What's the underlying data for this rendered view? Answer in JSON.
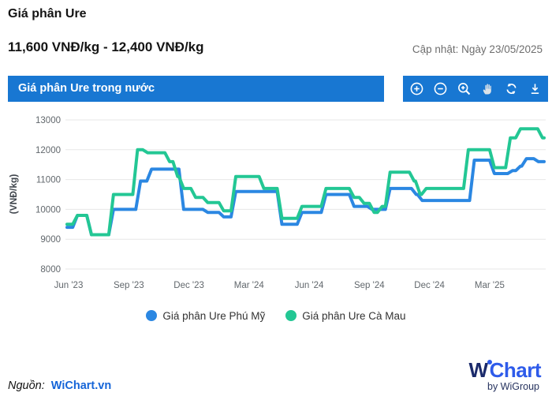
{
  "header": {
    "title": "Giá phân Ure",
    "price_range": "11,600 VNĐ/kg - 12,400 VNĐ/kg",
    "updated": "Cập nhật: Ngày 23/05/2025"
  },
  "banner": {
    "label": "Giá phân Ure trong nước",
    "color": "#1877d2",
    "tools": [
      "zoom-in",
      "zoom-out",
      "zoom-selection",
      "pan",
      "reset",
      "download"
    ]
  },
  "chart_data": {
    "type": "line",
    "step": true,
    "title": "Giá phân Ure trong nước",
    "xlabel": "",
    "ylabel": "(VNĐ/kg)",
    "ylim": [
      8000,
      13000
    ],
    "yticks": [
      8000,
      9000,
      10000,
      11000,
      12000,
      13000
    ],
    "xticks": [
      "Jun '23",
      "Sep '23",
      "Dec '23",
      "Mar '24",
      "Jun '24",
      "Sep '24",
      "Dec '24",
      "Mar '25"
    ],
    "xtick_positions": [
      0.08,
      3.08,
      6.08,
      9.08,
      12.08,
      15.08,
      18.08,
      21.08
    ],
    "x_unit": "months since Jun 2023",
    "x_total_months": 23.8,
    "grid": "horizontal",
    "legend_position": "bottom",
    "series": [
      {
        "name": "Giá phân Ure Phú Mỹ",
        "color": "#2b87e2",
        "points": [
          [
            0,
            9400
          ],
          [
            0.4,
            9800
          ],
          [
            1.1,
            9150
          ],
          [
            2.2,
            10000
          ],
          [
            3.55,
            10950
          ],
          [
            4.1,
            11350
          ],
          [
            5.7,
            10000
          ],
          [
            6.9,
            9900
          ],
          [
            7.7,
            9750
          ],
          [
            8.3,
            10600
          ],
          [
            10.6,
            9500
          ],
          [
            11.6,
            9900
          ],
          [
            12.8,
            10500
          ],
          [
            14.2,
            10100
          ],
          [
            15.1,
            10000
          ],
          [
            16,
            10700
          ],
          [
            17.3,
            10500
          ],
          [
            17.6,
            10300
          ],
          [
            20.2,
            11650
          ],
          [
            21.2,
            11200
          ],
          [
            22.1,
            11300
          ],
          [
            22.5,
            11450
          ],
          [
            22.8,
            11700
          ],
          [
            23.4,
            11600
          ]
        ]
      },
      {
        "name": "Giá phân Ure Cà Mau",
        "color": "#23c794",
        "points": [
          [
            0,
            9500
          ],
          [
            0.4,
            9800
          ],
          [
            1.1,
            9150
          ],
          [
            2.2,
            10500
          ],
          [
            3.4,
            12000
          ],
          [
            3.9,
            11900
          ],
          [
            5,
            11600
          ],
          [
            5.4,
            11100
          ],
          [
            5.7,
            10700
          ],
          [
            6.3,
            10400
          ],
          [
            6.9,
            10230
          ],
          [
            7.7,
            9950
          ],
          [
            8.3,
            11100
          ],
          [
            9.7,
            10700
          ],
          [
            10.6,
            9700
          ],
          [
            11.6,
            10100
          ],
          [
            12.8,
            10700
          ],
          [
            14.2,
            10400
          ],
          [
            14.7,
            10200
          ],
          [
            15.2,
            9900
          ],
          [
            15.6,
            10100
          ],
          [
            16,
            11250
          ],
          [
            17.2,
            10950
          ],
          [
            17.5,
            10500
          ],
          [
            17.8,
            10700
          ],
          [
            19.9,
            12000
          ],
          [
            21.2,
            11400
          ],
          [
            22,
            12400
          ],
          [
            22.5,
            12700
          ],
          [
            23.6,
            12400
          ]
        ]
      }
    ]
  },
  "footer": {
    "source_label": "Nguồn:",
    "source_link": "WiChart.vn",
    "logo_w": "W",
    "logo_chart": "Chart",
    "logo_sub": "by WiGroup"
  },
  "colors": {
    "banner_blue": "#1877d2",
    "series_phu_my": "#2b87e2",
    "series_ca_mau": "#23c794",
    "link_blue": "#1565d8",
    "logo_navy": "#1b2a6b",
    "logo_blue": "#2e5bea",
    "axis_text": "#61676c",
    "gridline": "#e7e7e7"
  }
}
